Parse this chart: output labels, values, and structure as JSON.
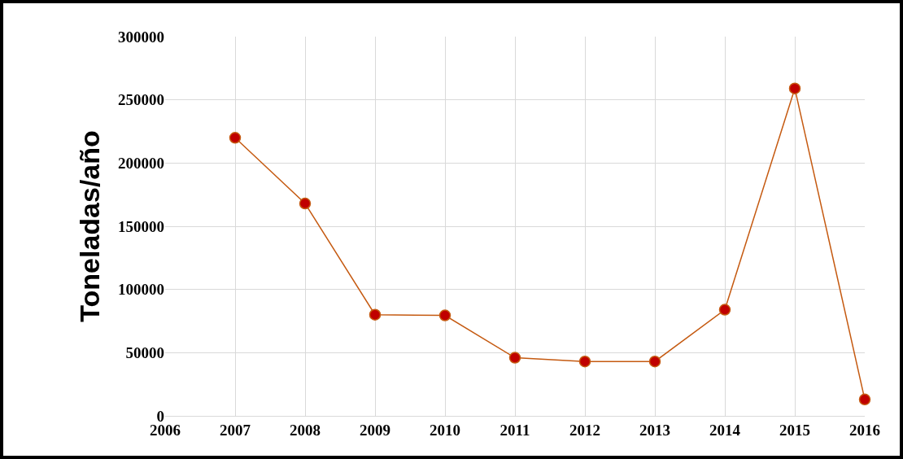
{
  "chart_data": {
    "type": "line",
    "ylabel": "Toneladas/año",
    "x": [
      2007,
      2008,
      2009,
      2010,
      2011,
      2012,
      2013,
      2014,
      2015,
      2016
    ],
    "series": [
      {
        "color": "#c55a11",
        "colors": [
          "#c00000",
          "#c00000",
          "#c00000",
          "#c00000",
          "#c00000",
          "#c00000",
          "#c00000",
          "#c00000",
          "#c00000",
          "#c00000"
        ],
        "values": [
          220000,
          168000,
          80000,
          79500,
          46000,
          43000,
          43000,
          84000,
          259000,
          13000
        ]
      }
    ],
    "xlim": [
      2006,
      2016
    ],
    "xticks": [
      2006,
      2007,
      2008,
      2009,
      2010,
      2011,
      2012,
      2013,
      2014,
      2015,
      2016
    ],
    "ylim": [
      0,
      300000
    ],
    "yticks": [
      0,
      50000,
      100000,
      150000,
      200000,
      250000,
      300000
    ],
    "grid": true,
    "marker": "circle",
    "line_style": "solid"
  }
}
